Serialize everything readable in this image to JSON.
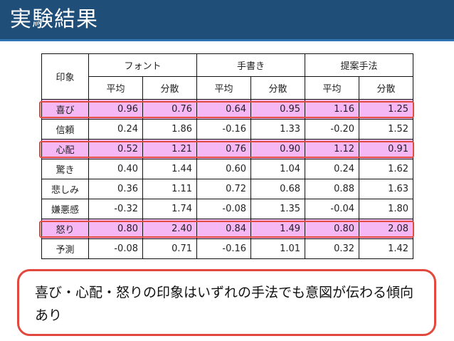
{
  "slide": {
    "title": "実験結果"
  },
  "table": {
    "row_header": "印象",
    "groups": [
      "フォント",
      "手書き",
      "提案手法"
    ],
    "subheaders": [
      "平均",
      "分散",
      "平均",
      "分散",
      "平均",
      "分散"
    ],
    "rows": [
      {
        "label": "喜び",
        "values": [
          "0.96",
          "0.76",
          "0.64",
          "0.95",
          "1.16",
          "1.25"
        ],
        "highlighted": true
      },
      {
        "label": "信頼",
        "values": [
          "0.24",
          "1.86",
          "-0.16",
          "1.33",
          "-0.20",
          "1.52"
        ],
        "highlighted": false
      },
      {
        "label": "心配",
        "values": [
          "0.52",
          "1.21",
          "0.76",
          "0.90",
          "1.12",
          "0.91"
        ],
        "highlighted": true
      },
      {
        "label": "驚き",
        "values": [
          "0.40",
          "1.44",
          "0.60",
          "1.04",
          "0.24",
          "1.62"
        ],
        "highlighted": false
      },
      {
        "label": "悲しみ",
        "values": [
          "0.36",
          "1.11",
          "0.72",
          "0.68",
          "0.88",
          "1.63"
        ],
        "highlighted": false
      },
      {
        "label": "嫌悪感",
        "values": [
          "-0.32",
          "1.74",
          "-0.08",
          "1.35",
          "-0.04",
          "1.80"
        ],
        "highlighted": false
      },
      {
        "label": "怒り",
        "values": [
          "0.80",
          "2.40",
          "0.84",
          "1.49",
          "0.80",
          "2.08"
        ],
        "highlighted": true
      },
      {
        "label": "予測",
        "values": [
          "-0.08",
          "0.71",
          "-0.16",
          "1.01",
          "0.32",
          "1.42"
        ],
        "highlighted": false
      }
    ]
  },
  "colors": {
    "title_bar": "#1f4e79",
    "highlight_fill": "#f6b8f4",
    "highlight_border": "#e24b3f",
    "note_border": "#e2483d"
  },
  "note": {
    "text": "喜び・心配・怒りの印象はいずれの手法でも意図が伝わる傾向あり"
  }
}
